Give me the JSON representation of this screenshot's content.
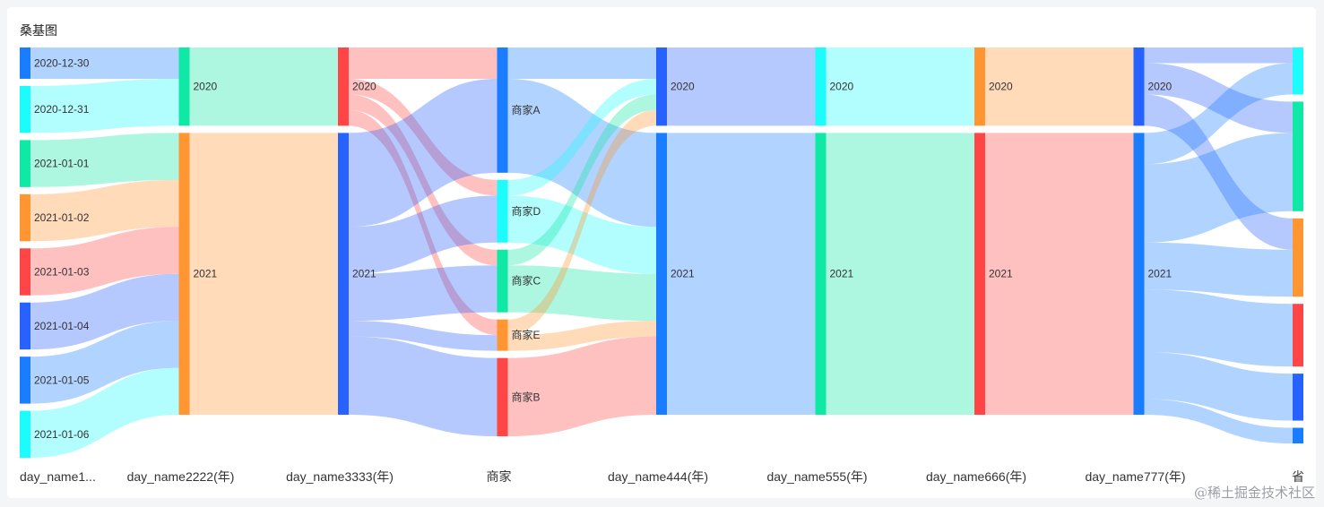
{
  "title": "桑基图",
  "watermark": "@稀土掘金技术社区",
  "colors": {
    "blue": "#1a7dff",
    "royal": "#2762ff",
    "cyan": "#1cfcfc",
    "green": "#10e8a5",
    "orange": "#ff9632",
    "red": "#ff4545"
  },
  "chart_data": {
    "type": "sankey",
    "title": "桑基图",
    "columns": [
      {
        "label": "day_name1...",
        "nodes": [
          {
            "id": "c1_1230",
            "name": "2020-12-30",
            "value": 2,
            "color": "blue"
          },
          {
            "id": "c1_1231",
            "name": "2020-12-31",
            "value": 3,
            "color": "cyan"
          },
          {
            "id": "c1_0101",
            "name": "2021-01-01",
            "value": 3,
            "color": "green"
          },
          {
            "id": "c1_0102",
            "name": "2021-01-02",
            "value": 3,
            "color": "orange"
          },
          {
            "id": "c1_0103",
            "name": "2021-01-03",
            "value": 3,
            "color": "red"
          },
          {
            "id": "c1_0104",
            "name": "2021-01-04",
            "value": 3,
            "color": "royal"
          },
          {
            "id": "c1_0105",
            "name": "2021-01-05",
            "value": 3,
            "color": "blue"
          },
          {
            "id": "c1_0106",
            "name": "2021-01-06",
            "value": 3,
            "color": "cyan"
          }
        ]
      },
      {
        "label": "day_name2222(年)",
        "nodes": [
          {
            "id": "c2_2020",
            "name": "2020",
            "value": 5,
            "color": "green"
          },
          {
            "id": "c2_2021",
            "name": "2021",
            "value": 18,
            "color": "orange"
          }
        ]
      },
      {
        "label": "day_name3333(年)",
        "nodes": [
          {
            "id": "c3_2020",
            "name": "2020",
            "value": 5,
            "color": "red"
          },
          {
            "id": "c3_2021",
            "name": "2021",
            "value": 18,
            "color": "royal"
          }
        ]
      },
      {
        "label": "商家",
        "nodes": [
          {
            "id": "m_A",
            "name": "商家A",
            "value": 8,
            "color": "blue"
          },
          {
            "id": "m_D",
            "name": "商家D",
            "value": 4,
            "color": "cyan"
          },
          {
            "id": "m_C",
            "name": "商家C",
            "value": 4,
            "color": "green"
          },
          {
            "id": "m_E",
            "name": "商家E",
            "value": 2,
            "color": "orange"
          },
          {
            "id": "m_B",
            "name": "商家B",
            "value": 5,
            "color": "red"
          }
        ]
      },
      {
        "label": "day_name444(年)",
        "nodes": [
          {
            "id": "c5_2020",
            "name": "2020",
            "value": 5,
            "color": "royal"
          },
          {
            "id": "c5_2021",
            "name": "2021",
            "value": 18,
            "color": "blue"
          }
        ]
      },
      {
        "label": "day_name555(年)",
        "nodes": [
          {
            "id": "c6_2020",
            "name": "2020",
            "value": 5,
            "color": "cyan"
          },
          {
            "id": "c6_2021",
            "name": "2021",
            "value": 18,
            "color": "green"
          }
        ]
      },
      {
        "label": "day_name666(年)",
        "nodes": [
          {
            "id": "c7_2020",
            "name": "2020",
            "value": 5,
            "color": "orange"
          },
          {
            "id": "c7_2021",
            "name": "2021",
            "value": 18,
            "color": "red"
          }
        ]
      },
      {
        "label": "day_name777(年)",
        "nodes": [
          {
            "id": "c8_2020",
            "name": "2020",
            "value": 5,
            "color": "royal"
          },
          {
            "id": "c8_2021",
            "name": "2021",
            "value": 18,
            "color": "blue"
          }
        ]
      },
      {
        "label": "省",
        "nodes": [
          {
            "id": "p1",
            "name": "",
            "value": 3,
            "color": "cyan"
          },
          {
            "id": "p2",
            "name": "",
            "value": 7,
            "color": "green"
          },
          {
            "id": "p3",
            "name": "",
            "value": 5,
            "color": "orange"
          },
          {
            "id": "p4",
            "name": "",
            "value": 4,
            "color": "red"
          },
          {
            "id": "p5",
            "name": "",
            "value": 3,
            "color": "royal"
          },
          {
            "id": "p6",
            "name": "",
            "value": 1,
            "color": "blue"
          }
        ]
      }
    ],
    "links": [
      [
        "c1_1230",
        "c2_2020",
        2
      ],
      [
        "c1_1231",
        "c2_2020",
        3
      ],
      [
        "c1_0101",
        "c2_2021",
        3
      ],
      [
        "c1_0102",
        "c2_2021",
        3
      ],
      [
        "c1_0103",
        "c2_2021",
        3
      ],
      [
        "c1_0104",
        "c2_2021",
        3
      ],
      [
        "c1_0105",
        "c2_2021",
        3
      ],
      [
        "c1_0106",
        "c2_2021",
        3
      ],
      [
        "c2_2020",
        "c3_2020",
        5
      ],
      [
        "c2_2021",
        "c3_2021",
        18
      ],
      [
        "c3_2020",
        "m_A",
        2
      ],
      [
        "c3_2020",
        "m_D",
        1
      ],
      [
        "c3_2020",
        "m_C",
        1
      ],
      [
        "c3_2020",
        "m_E",
        1
      ],
      [
        "c3_2021",
        "m_A",
        6
      ],
      [
        "c3_2021",
        "m_D",
        3
      ],
      [
        "c3_2021",
        "m_C",
        3
      ],
      [
        "c3_2021",
        "m_E",
        1
      ],
      [
        "c3_2021",
        "m_B",
        5
      ],
      [
        "m_A",
        "c5_2020",
        2
      ],
      [
        "m_A",
        "c5_2021",
        6
      ],
      [
        "m_D",
        "c5_2020",
        1
      ],
      [
        "m_D",
        "c5_2021",
        3
      ],
      [
        "m_C",
        "c5_2020",
        1
      ],
      [
        "m_C",
        "c5_2021",
        3
      ],
      [
        "m_E",
        "c5_2020",
        1
      ],
      [
        "m_E",
        "c5_2021",
        1
      ],
      [
        "m_B",
        "c5_2021",
        5
      ],
      [
        "c5_2020",
        "c6_2020",
        5
      ],
      [
        "c5_2021",
        "c6_2021",
        18
      ],
      [
        "c6_2020",
        "c7_2020",
        5
      ],
      [
        "c6_2021",
        "c7_2021",
        18
      ],
      [
        "c7_2020",
        "c8_2020",
        5
      ],
      [
        "c7_2021",
        "c8_2021",
        18
      ],
      [
        "c8_2020",
        "p1",
        1
      ],
      [
        "c8_2020",
        "p2",
        2
      ],
      [
        "c8_2020",
        "p3",
        2
      ],
      [
        "c8_2021",
        "p1",
        2
      ],
      [
        "c8_2021",
        "p2",
        5
      ],
      [
        "c8_2021",
        "p3",
        3
      ],
      [
        "c8_2021",
        "p4",
        4
      ],
      [
        "c8_2021",
        "p5",
        3
      ],
      [
        "c8_2021",
        "p6",
        1
      ]
    ]
  }
}
